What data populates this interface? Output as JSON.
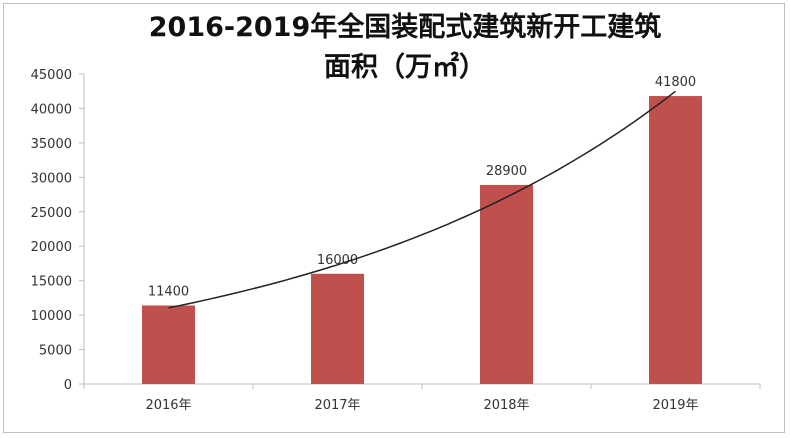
{
  "chart_data": {
    "type": "bar",
    "title_line1": "2016-2019年全国装配式建筑新开工建筑",
    "title_line2": "面积（万㎡）",
    "categories": [
      "2016年",
      "2017年",
      "2018年",
      "2019年"
    ],
    "values": [
      11400,
      16000,
      28900,
      41800
    ],
    "ylim": [
      0,
      45000
    ],
    "yticks": [
      0,
      5000,
      10000,
      15000,
      20000,
      25000,
      30000,
      35000,
      40000,
      45000
    ],
    "grid": false,
    "trendline": true,
    "colors": {
      "bar": "#c0504d",
      "trend": "#222222",
      "axis": "#bfbfbf",
      "text": "#333333"
    }
  }
}
